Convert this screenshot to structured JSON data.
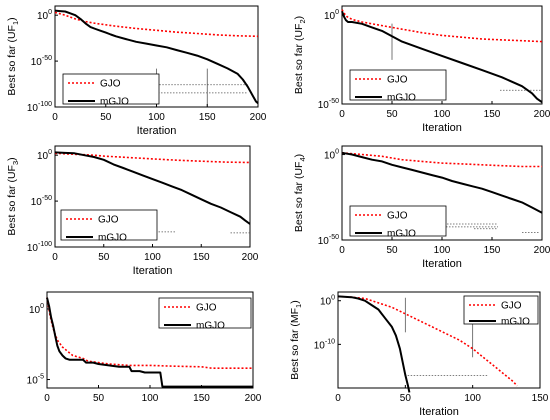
{
  "figure": {
    "legend_labels": [
      "GJO",
      "mGJO"
    ],
    "colors": {
      "gjo": "#ff0000",
      "mgjo": "#000000",
      "axis": "#000000",
      "ref": "#555555"
    }
  },
  "chart_data": [
    {
      "id": "uf1",
      "type": "line",
      "ylabel_prefix": "Best so far (UF",
      "ylabel_sub": "1",
      "ylabel_suffix": ")",
      "xlabel": "Iteration",
      "xlim": [
        0,
        200
      ],
      "ylim": [
        -100,
        10
      ],
      "yscale": "log",
      "xticks": [
        0,
        50,
        100,
        150,
        200
      ],
      "yticks": [
        {
          "v": 0,
          "b": "10",
          "e": "0"
        },
        {
          "v": -50,
          "b": "10",
          "e": "-50"
        },
        {
          "v": -100,
          "b": "10",
          "e": "-100"
        }
      ],
      "legend_position": "lower-left",
      "series": [
        {
          "name": "GJO",
          "key": "gjo",
          "x": [
            0,
            10,
            20,
            30,
            40,
            50,
            60,
            80,
            100,
            120,
            140,
            160,
            180,
            200
          ],
          "y": [
            3,
            0,
            -4,
            -7,
            -9,
            -10.5,
            -12,
            -14.5,
            -16.5,
            -18.5,
            -20,
            -21.5,
            -22.5,
            -23
          ]
        },
        {
          "name": "mGJO",
          "key": "mgjo",
          "x": [
            0,
            5,
            10,
            15,
            20,
            25,
            30,
            35,
            40,
            45,
            50,
            55,
            60,
            70,
            80,
            90,
            100,
            110,
            120,
            130,
            140,
            150,
            160,
            170,
            180,
            185,
            190,
            195,
            198,
            200
          ],
          "y": [
            5,
            4.5,
            4,
            2,
            0,
            -4,
            -9,
            -13,
            -15,
            -17,
            -19,
            -21,
            -23,
            -26,
            -29,
            -31,
            -33,
            -35,
            -38,
            -41,
            -44,
            -48,
            -53,
            -58,
            -64,
            -70,
            -78,
            -88,
            -94,
            -96
          ]
        }
      ]
    },
    {
      "id": "uf2",
      "type": "line",
      "ylabel_prefix": "Best so far (UF",
      "ylabel_sub": "2",
      "ylabel_suffix": ")",
      "xlabel": "Iteration",
      "xlim": [
        0,
        200
      ],
      "ylim": [
        -50,
        5
      ],
      "yscale": "log",
      "xticks": [
        0,
        50,
        100,
        150,
        200
      ],
      "yticks": [
        {
          "v": 0,
          "b": "10",
          "e": "0"
        },
        {
          "v": -50,
          "b": "10",
          "e": "-50"
        }
      ],
      "legend_position": "top-right",
      "series": [
        {
          "name": "GJO",
          "key": "gjo",
          "x": [
            0,
            2,
            5,
            10,
            20,
            30,
            40,
            50,
            60,
            70,
            80,
            100,
            120,
            140,
            160,
            180,
            200
          ],
          "y": [
            3,
            1,
            -1,
            -2.5,
            -4,
            -5,
            -6,
            -7,
            -8,
            -9,
            -10,
            -11.5,
            -12.5,
            -13.5,
            -14,
            -14.5,
            -15
          ]
        },
        {
          "name": "mGJO",
          "key": "mgjo",
          "x": [
            0,
            2,
            4,
            6,
            10,
            20,
            30,
            40,
            50,
            60,
            80,
            100,
            120,
            140,
            160,
            180,
            190,
            195,
            200
          ],
          "y": [
            2,
            -1,
            -3,
            -4,
            -4,
            -5,
            -7,
            -9,
            -12,
            -15,
            -19,
            -23,
            -27,
            -31,
            -35,
            -40,
            -44,
            -47,
            -49
          ]
        }
      ]
    },
    {
      "id": "uf3",
      "type": "line",
      "ylabel_prefix": "Best so far (UF",
      "ylabel_sub": "3",
      "ylabel_suffix": ")",
      "xlabel": "Iteration",
      "xlim": [
        0,
        200
      ],
      "ylim": [
        -100,
        10
      ],
      "yscale": "log",
      "xticks": [
        0,
        50,
        100,
        150,
        200
      ],
      "yticks": [
        {
          "v": 0,
          "b": "10",
          "e": "0"
        },
        {
          "v": -50,
          "b": "10",
          "e": "-50"
        },
        {
          "v": -100,
          "b": "10",
          "e": "-100"
        }
      ],
      "legend_position": "lower-left",
      "series": [
        {
          "name": "GJO",
          "key": "gjo",
          "x": [
            0,
            10,
            20,
            30,
            40,
            50,
            75,
            100,
            125,
            150,
            175,
            200
          ],
          "y": [
            2,
            1.5,
            1,
            0.5,
            0,
            -1,
            -2.5,
            -4,
            -5.5,
            -6.5,
            -7.5,
            -8
          ]
        },
        {
          "name": "mGJO",
          "key": "mgjo",
          "x": [
            0,
            10,
            20,
            30,
            40,
            50,
            60,
            70,
            80,
            90,
            100,
            110,
            120,
            130,
            140,
            150,
            160,
            170,
            180,
            190,
            195,
            200
          ],
          "y": [
            3,
            2.5,
            2,
            0,
            -2,
            -5,
            -10,
            -14,
            -18,
            -22,
            -26,
            -30,
            -34,
            -38,
            -43,
            -48,
            -53,
            -57,
            -62,
            -67,
            -71,
            -75
          ]
        }
      ]
    },
    {
      "id": "uf4",
      "type": "line",
      "ylabel_prefix": "Best so far (UF",
      "ylabel_sub": "4",
      "ylabel_suffix": ")",
      "xlabel": "Iteration",
      "xlim": [
        0,
        200
      ],
      "ylim": [
        -50,
        5
      ],
      "yscale": "log",
      "xticks": [
        0,
        50,
        100,
        150,
        200
      ],
      "yticks": [
        {
          "v": 0,
          "b": "10",
          "e": "0"
        },
        {
          "v": -50,
          "b": "10",
          "e": "-50"
        }
      ],
      "legend_position": "lower-right",
      "series": [
        {
          "name": "GJO",
          "key": "gjo",
          "x": [
            0,
            10,
            20,
            30,
            40,
            50,
            60,
            80,
            100,
            120,
            140,
            160,
            180,
            200
          ],
          "y": [
            1,
            0.5,
            0,
            -0.5,
            -1,
            -2,
            -3,
            -4,
            -5,
            -5.5,
            -6,
            -6.5,
            -7,
            -7
          ]
        },
        {
          "name": "mGJO",
          "key": "mgjo",
          "x": [
            0,
            5,
            10,
            20,
            30,
            40,
            50,
            60,
            70,
            80,
            90,
            100,
            110,
            120,
            130,
            140,
            150,
            160,
            170,
            180,
            190,
            200
          ],
          "y": [
            1,
            0.5,
            0,
            -1.5,
            -3,
            -4,
            -6,
            -7.5,
            -9,
            -10.5,
            -12,
            -13.5,
            -15.5,
            -17,
            -18.5,
            -20,
            -22,
            -24,
            -26,
            -28,
            -31,
            -34
          ]
        }
      ]
    },
    {
      "id": "uf5",
      "type": "line",
      "ylabel_prefix": "",
      "ylabel_sub": "",
      "ylabel_suffix": "",
      "xlabel": "",
      "xlim": [
        0,
        200
      ],
      "ylim": [
        -5.6,
        1.2
      ],
      "yscale": "log",
      "xticks": [
        0,
        50,
        100,
        150,
        200
      ],
      "yticks": [
        {
          "v": 0,
          "b": "10",
          "e": "0"
        },
        {
          "v": -5,
          "b": "10",
          "e": "-5"
        }
      ],
      "legend_position": "top-right",
      "series": [
        {
          "name": "GJO",
          "key": "gjo",
          "x": [
            0,
            3,
            6,
            10,
            15,
            20,
            25,
            30,
            35,
            40,
            50,
            60,
            80,
            100,
            120,
            150,
            160,
            200
          ],
          "y": [
            0.8,
            -0.5,
            -1.4,
            -2.2,
            -2.7,
            -3.0,
            -3.3,
            -3.4,
            -3.5,
            -3.7,
            -3.8,
            -3.9,
            -4.0,
            -4.0,
            -4.05,
            -4.1,
            -4.2,
            -4.2
          ]
        },
        {
          "name": "mGJO",
          "key": "mgjo",
          "x": [
            0,
            2,
            4,
            6,
            8,
            10,
            12,
            15,
            18,
            22,
            25,
            30,
            35,
            38,
            45,
            50,
            60,
            70,
            80,
            82,
            90,
            95,
            100,
            110,
            112,
            150,
            200
          ],
          "y": [
            0.8,
            0.2,
            -0.6,
            -1.2,
            -1.9,
            -2.6,
            -3.0,
            -3.3,
            -3.5,
            -3.6,
            -3.6,
            -3.6,
            -3.6,
            -3.8,
            -3.8,
            -3.9,
            -4.0,
            -4.1,
            -4.1,
            -4.4,
            -4.4,
            -4.5,
            -4.5,
            -4.5,
            -5.5,
            -5.5,
            -5.5
          ]
        }
      ]
    },
    {
      "id": "mf1",
      "type": "line",
      "ylabel_prefix": "Best so far (MF",
      "ylabel_sub": "1",
      "ylabel_suffix": ")",
      "xlabel": "Iteration",
      "xlim": [
        0,
        150
      ],
      "ylim": [
        -20,
        2
      ],
      "yscale": "log",
      "xticks": [
        0,
        50,
        100,
        150
      ],
      "yticks": [
        {
          "v": 0,
          "b": "10",
          "e": "0"
        },
        {
          "v": -10,
          "b": "10",
          "e": "-10"
        }
      ],
      "legend_position": "top-right",
      "series": [
        {
          "name": "GJO",
          "key": "gjo",
          "x": [
            0,
            10,
            20,
            25,
            30,
            40,
            50,
            60,
            70,
            80,
            90,
            100,
            110,
            120,
            130,
            133
          ],
          "y": [
            1,
            0.8,
            0.5,
            0,
            -0.5,
            -1.5,
            -3,
            -4.5,
            -6,
            -7.5,
            -9,
            -11,
            -13.5,
            -16,
            -18.5,
            -19.5
          ]
        },
        {
          "name": "mGJO",
          "key": "mgjo",
          "x": [
            0,
            10,
            15,
            20,
            25,
            30,
            35,
            40,
            43,
            46,
            48,
            50,
            52,
            53
          ],
          "y": [
            1,
            0.8,
            0.5,
            0,
            -1,
            -2,
            -4,
            -6,
            -8,
            -11,
            -14,
            -17,
            -19.5,
            -21
          ]
        }
      ]
    }
  ]
}
